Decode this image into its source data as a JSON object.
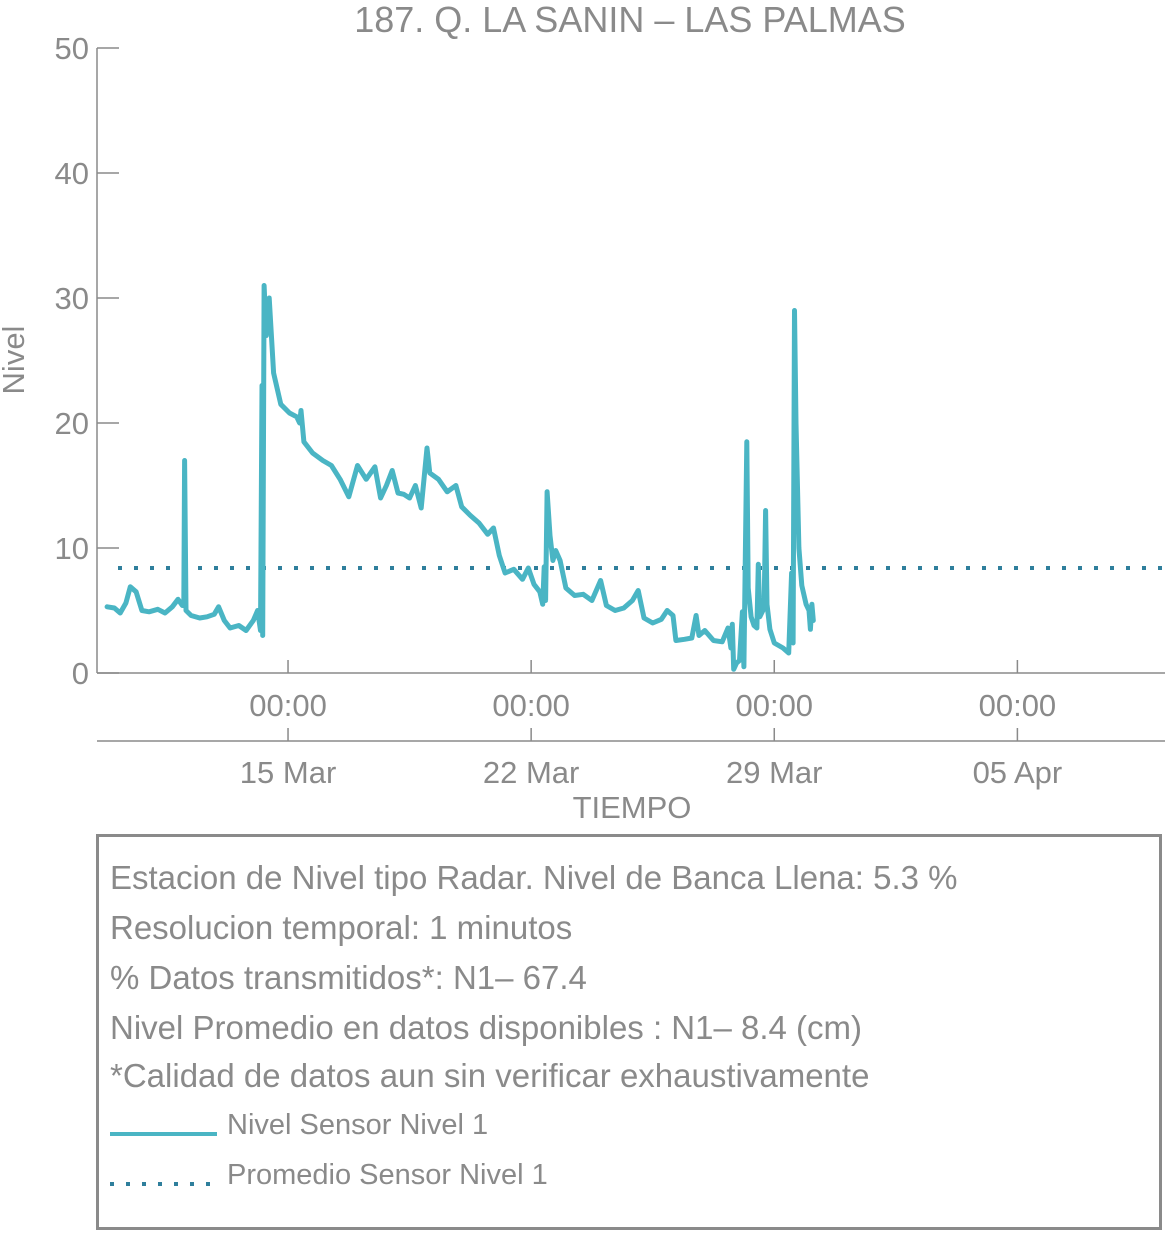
{
  "chart_data": {
    "type": "line",
    "title": "187. Q. LA SANIN – LAS PALMAS",
    "xlabel": "TIEMPO",
    "ylabel": "Nivel",
    "ylim": [
      0,
      50
    ],
    "yticks": [
      0,
      10,
      20,
      30,
      40,
      50
    ],
    "xlim": [
      "2022-03-09 12:00",
      "2022-04-09 06:00"
    ],
    "xticks_time": [
      {
        "x": "2022-03-15 00:00",
        "label": "00:00"
      },
      {
        "x": "2022-03-22 00:00",
        "label": "00:00"
      },
      {
        "x": "2022-03-29 00:00",
        "label": "00:00"
      },
      {
        "x": "2022-04-05 00:00",
        "label": "00:00"
      }
    ],
    "xticks_date": [
      {
        "x": "2022-03-15 00:00",
        "label": "15 Mar"
      },
      {
        "x": "2022-03-22 00:00",
        "label": "22 Mar"
      },
      {
        "x": "2022-03-29 00:00",
        "label": "29 Mar"
      },
      {
        "x": "2022-04-05 00:00",
        "label": "05 Apr"
      }
    ],
    "series": [
      {
        "name": "Nivel Sensor Nivel 1",
        "color": "#4ab5c4",
        "points": [
          [
            "2022-03-09 19:00",
            5.3
          ],
          [
            "2022-03-10 00:00",
            5.2
          ],
          [
            "2022-03-10 04:00",
            4.8
          ],
          [
            "2022-03-10 08:00",
            5.6
          ],
          [
            "2022-03-10 11:00",
            6.9
          ],
          [
            "2022-03-10 15:00",
            6.5
          ],
          [
            "2022-03-10 19:00",
            5.0
          ],
          [
            "2022-03-11 00:00",
            4.9
          ],
          [
            "2022-03-11 06:00",
            5.1
          ],
          [
            "2022-03-11 11:00",
            4.8
          ],
          [
            "2022-03-11 16:00",
            5.3
          ],
          [
            "2022-03-11 20:00",
            5.9
          ],
          [
            "2022-03-11 23:00",
            5.4
          ],
          [
            "2022-03-12 00:00",
            5.4
          ],
          [
            "2022-03-12 00:30",
            17.0
          ],
          [
            "2022-03-12 01:30",
            5.0
          ],
          [
            "2022-03-12 05:00",
            4.6
          ],
          [
            "2022-03-12 11:00",
            4.4
          ],
          [
            "2022-03-12 16:00",
            4.5
          ],
          [
            "2022-03-12 21:00",
            4.7
          ],
          [
            "2022-03-13 00:00",
            5.3
          ],
          [
            "2022-03-13 04:00",
            4.2
          ],
          [
            "2022-03-13 08:00",
            3.6
          ],
          [
            "2022-03-13 14:00",
            3.8
          ],
          [
            "2022-03-13 19:00",
            3.4
          ],
          [
            "2022-03-14 00:00",
            4.2
          ],
          [
            "2022-03-14 03:00",
            5.0
          ],
          [
            "2022-03-14 05:00",
            3.4
          ],
          [
            "2022-03-14 06:00",
            23.0
          ],
          [
            "2022-03-14 06:30",
            3.0
          ],
          [
            "2022-03-14 07:30",
            31.0
          ],
          [
            "2022-03-14 09:00",
            27.0
          ],
          [
            "2022-03-14 11:00",
            30.0
          ],
          [
            "2022-03-14 14:00",
            24.0
          ],
          [
            "2022-03-14 19:00",
            21.5
          ],
          [
            "2022-03-15 01:00",
            20.8
          ],
          [
            "2022-03-15 06:00",
            20.5
          ],
          [
            "2022-03-15 08:00",
            20.0
          ],
          [
            "2022-03-15 09:00",
            21.0
          ],
          [
            "2022-03-15 11:00",
            18.5
          ],
          [
            "2022-03-15 17:00",
            17.6
          ],
          [
            "2022-03-16 00:00",
            17.0
          ],
          [
            "2022-03-16 06:00",
            16.6
          ],
          [
            "2022-03-16 12:00",
            15.5
          ],
          [
            "2022-03-16 18:00",
            14.1
          ],
          [
            "2022-03-17 00:00",
            16.6
          ],
          [
            "2022-03-17 06:00",
            15.5
          ],
          [
            "2022-03-17 12:00",
            16.5
          ],
          [
            "2022-03-17 16:00",
            14.0
          ],
          [
            "2022-03-17 20:00",
            15.0
          ],
          [
            "2022-03-18 00:00",
            16.2
          ],
          [
            "2022-03-18 04:00",
            14.4
          ],
          [
            "2022-03-18 08:00",
            14.3
          ],
          [
            "2022-03-18 12:00",
            14.0
          ],
          [
            "2022-03-18 16:00",
            15.0
          ],
          [
            "2022-03-18 20:00",
            13.2
          ],
          [
            "2022-03-19 00:00",
            18.0
          ],
          [
            "2022-03-19 02:00",
            16.0
          ],
          [
            "2022-03-19 08:00",
            15.5
          ],
          [
            "2022-03-19 14:00",
            14.5
          ],
          [
            "2022-03-19 20:00",
            15.0
          ],
          [
            "2022-03-20 00:00",
            13.3
          ],
          [
            "2022-03-20 06:00",
            12.6
          ],
          [
            "2022-03-20 12:00",
            12.0
          ],
          [
            "2022-03-20 18:00",
            11.1
          ],
          [
            "2022-03-20 22:00",
            11.6
          ],
          [
            "2022-03-21 02:00",
            9.4
          ],
          [
            "2022-03-21 06:00",
            8.0
          ],
          [
            "2022-03-21 12:00",
            8.3
          ],
          [
            "2022-03-21 18:00",
            7.5
          ],
          [
            "2022-03-21 22:00",
            8.4
          ],
          [
            "2022-03-22 02:00",
            7.1
          ],
          [
            "2022-03-22 06:00",
            6.5
          ],
          [
            "2022-03-22 08:00",
            5.5
          ],
          [
            "2022-03-22 09:00",
            8.5
          ],
          [
            "2022-03-22 10:00",
            5.8
          ],
          [
            "2022-03-22 11:00",
            14.5
          ],
          [
            "2022-03-22 13:00",
            11.0
          ],
          [
            "2022-03-22 15:00",
            9.0
          ],
          [
            "2022-03-22 17:00",
            9.8
          ],
          [
            "2022-03-22 20:00",
            9.0
          ],
          [
            "2022-03-23 00:00",
            6.8
          ],
          [
            "2022-03-23 06:00",
            6.2
          ],
          [
            "2022-03-23 12:00",
            6.3
          ],
          [
            "2022-03-23 18:00",
            5.8
          ],
          [
            "2022-03-24 00:00",
            7.4
          ],
          [
            "2022-03-24 04:00",
            5.4
          ],
          [
            "2022-03-24 10:00",
            5.0
          ],
          [
            "2022-03-24 16:00",
            5.2
          ],
          [
            "2022-03-24 22:00",
            5.8
          ],
          [
            "2022-03-25 02:00",
            6.6
          ],
          [
            "2022-03-25 06:00",
            4.4
          ],
          [
            "2022-03-25 12:00",
            4.0
          ],
          [
            "2022-03-25 18:00",
            4.3
          ],
          [
            "2022-03-25 22:00",
            5.0
          ],
          [
            "2022-03-26 02:00",
            4.6
          ],
          [
            "2022-03-26 04:00",
            2.6
          ],
          [
            "2022-03-26 10:00",
            2.7
          ],
          [
            "2022-03-26 15:00",
            2.8
          ],
          [
            "2022-03-26 18:00",
            4.6
          ],
          [
            "2022-03-26 20:00",
            3.0
          ],
          [
            "2022-03-27 00:00",
            3.4
          ],
          [
            "2022-03-27 06:00",
            2.6
          ],
          [
            "2022-03-27 12:00",
            2.5
          ],
          [
            "2022-03-27 16:00",
            3.6
          ],
          [
            "2022-03-27 18:00",
            2.0
          ],
          [
            "2022-03-27 19:00",
            3.9
          ],
          [
            "2022-03-27 20:00",
            0.3
          ],
          [
            "2022-03-27 22:00",
            0.8
          ],
          [
            "2022-03-28 00:00",
            1.0
          ],
          [
            "2022-03-28 02:00",
            4.9
          ],
          [
            "2022-03-28 03:00",
            0.5
          ],
          [
            "2022-03-28 05:00",
            18.5
          ],
          [
            "2022-03-28 06:00",
            6.8
          ],
          [
            "2022-03-28 08:00",
            4.5
          ],
          [
            "2022-03-28 10:00",
            3.8
          ],
          [
            "2022-03-28 12:00",
            3.6
          ],
          [
            "2022-03-28 13:00",
            8.7
          ],
          [
            "2022-03-28 14:00",
            4.5
          ],
          [
            "2022-03-28 17:00",
            5.2
          ],
          [
            "2022-03-28 18:00",
            13.0
          ],
          [
            "2022-03-28 19:00",
            5.5
          ],
          [
            "2022-03-28 21:00",
            3.5
          ],
          [
            "2022-03-29 00:00",
            2.4
          ],
          [
            "2022-03-29 06:00",
            2.0
          ],
          [
            "2022-03-29 10:00",
            1.6
          ],
          [
            "2022-03-29 12:00",
            8.0
          ],
          [
            "2022-03-29 13:00",
            2.4
          ],
          [
            "2022-03-29 14:00",
            29.0
          ],
          [
            "2022-03-29 15:00",
            20.0
          ],
          [
            "2022-03-29 17:00",
            10.0
          ],
          [
            "2022-03-29 19:00",
            7.0
          ],
          [
            "2022-03-29 22:00",
            5.5
          ],
          [
            "2022-03-30 00:00",
            5.0
          ],
          [
            "2022-03-30 01:00",
            3.5
          ],
          [
            "2022-03-30 02:00",
            5.5
          ],
          [
            "2022-03-30 03:00",
            4.2
          ]
        ]
      },
      {
        "name": "Promedio Sensor Nivel 1",
        "color": "#2f7f9c",
        "style": "dotted",
        "value": 8.4
      }
    ],
    "grid": false,
    "legend": "bottom-left"
  },
  "info": {
    "lines": [
      "Estacion de Nivel tipo Radar. Nivel de Banca Llena:  5.3 %",
      "Resolucion temporal: 1 minutos",
      "% Datos transmitidos*: N1– 67.4",
      "Nivel Promedio en datos disponibles : N1–  8.4 (cm)",
      "*Calidad de datos aun sin verificar exhaustivamente"
    ],
    "legend": [
      {
        "label": "Nivel Sensor Nivel 1",
        "color": "#4ab5c4",
        "style": "solid"
      },
      {
        "label": "Promedio Sensor Nivel 1",
        "color": "#2f7f9c",
        "style": "dotted"
      }
    ]
  }
}
